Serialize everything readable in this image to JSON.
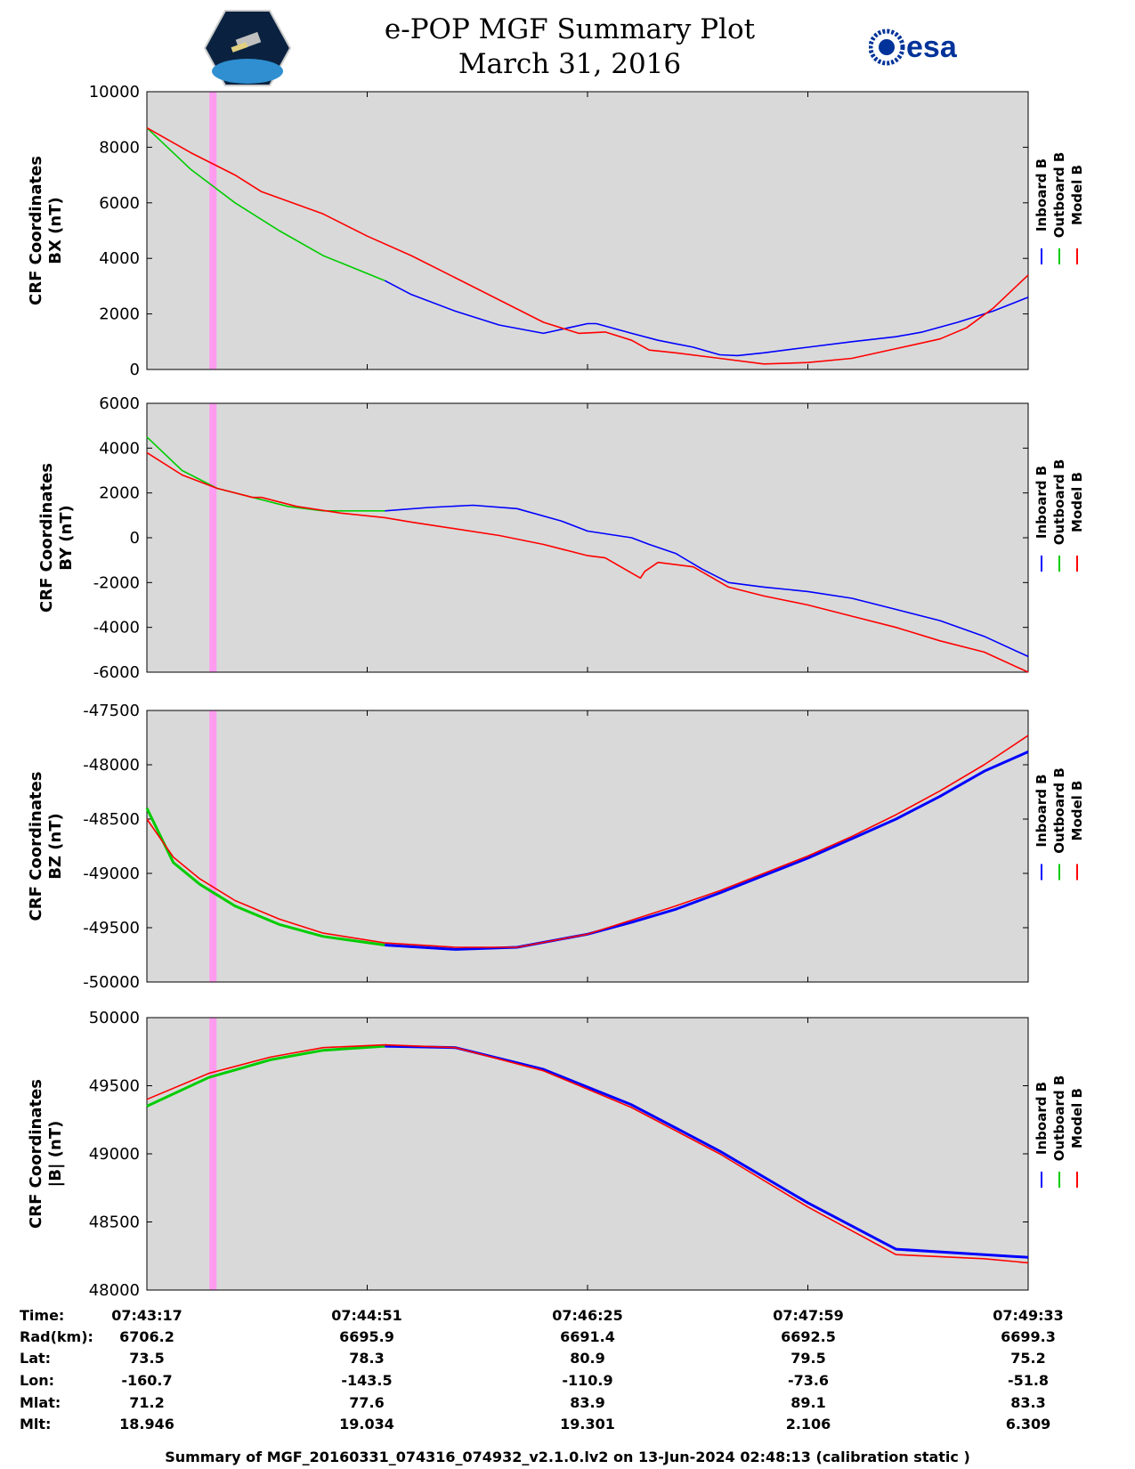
{
  "title": {
    "line1": "e-POP MGF Summary Plot",
    "line2": "March 31, 2016"
  },
  "logos": {
    "mission": "CASSIOPE mission patch",
    "agency": "esa"
  },
  "colors": {
    "background": "#d9d9d9",
    "inboard": "#0000ff",
    "outboard": "#00cc00",
    "model": "#ff0000",
    "marker": "#ff9cf0"
  },
  "legend": [
    "Inboard B",
    "Outboard B",
    "Model B"
  ],
  "x_ticks": [
    "07:43:17",
    "07:44:51",
    "07:46:25",
    "07:47:59",
    "07:49:33"
  ],
  "chart_data": [
    {
      "type": "line",
      "ylabel": [
        "CRF Coordinates",
        "BX (nT)"
      ],
      "ylim": [
        0,
        10000
      ],
      "yticks": [
        0,
        2000,
        4000,
        6000,
        8000,
        10000
      ],
      "x": [
        0,
        0.1,
        0.2,
        0.3,
        0.4,
        0.45,
        0.5,
        0.55,
        0.6,
        0.65,
        0.7,
        0.75,
        0.8,
        0.85,
        0.9,
        0.95,
        1.0
      ],
      "series": [
        {
          "name": "Inboard B",
          "color": "#0000ff",
          "x": [
            0.27,
            0.3,
            0.35,
            0.4,
            0.45,
            0.5,
            0.51,
            0.55,
            0.58,
            0.62,
            0.65,
            0.67,
            0.7,
            0.75,
            0.8,
            0.85,
            0.88,
            0.92,
            0.96,
            1.0
          ],
          "values": [
            3200,
            2700,
            2100,
            1600,
            1300,
            1650,
            1650,
            1300,
            1050,
            800,
            530,
            500,
            600,
            800,
            1000,
            1180,
            1350,
            1700,
            2100,
            2600
          ]
        },
        {
          "name": "Outboard B",
          "color": "#00cc00",
          "x": [
            0.0,
            0.05,
            0.1,
            0.15,
            0.2,
            0.27
          ],
          "values": [
            8700,
            7200,
            6000,
            5000,
            4100,
            3200
          ]
        },
        {
          "name": "Model B",
          "color": "#ff0000",
          "x": [
            0.0,
            0.05,
            0.1,
            0.13,
            0.2,
            0.25,
            0.3,
            0.35,
            0.4,
            0.45,
            0.49,
            0.52,
            0.55,
            0.57,
            0.6,
            0.65,
            0.7,
            0.75,
            0.8,
            0.85,
            0.9,
            0.93,
            0.96,
            1.0
          ],
          "values": [
            8700,
            7800,
            7000,
            6400,
            5600,
            4800,
            4100,
            3300,
            2500,
            1700,
            1300,
            1350,
            1050,
            700,
            600,
            400,
            200,
            250,
            400,
            750,
            1100,
            1500,
            2200,
            3400
          ]
        }
      ]
    },
    {
      "type": "line",
      "ylabel": [
        "CRF Coordinates",
        "BY (nT)"
      ],
      "ylim": [
        -6000,
        6000
      ],
      "yticks": [
        -6000,
        -4000,
        -2000,
        0,
        2000,
        4000,
        6000
      ],
      "series": [
        {
          "name": "Inboard B",
          "color": "#0000ff",
          "x": [
            0.27,
            0.32,
            0.37,
            0.42,
            0.47,
            0.5,
            0.55,
            0.57,
            0.6,
            0.63,
            0.66,
            0.7,
            0.75,
            0.8,
            0.85,
            0.9,
            0.95,
            1.0
          ],
          "values": [
            1200,
            1350,
            1450,
            1300,
            750,
            300,
            0,
            -300,
            -700,
            -1400,
            -2000,
            -2200,
            -2400,
            -2700,
            -3200,
            -3700,
            -4400,
            -5300
          ]
        },
        {
          "name": "Outboard B",
          "color": "#00cc00",
          "x": [
            0.0,
            0.04,
            0.08,
            0.12,
            0.16,
            0.2,
            0.27
          ],
          "values": [
            4500,
            3000,
            2200,
            1800,
            1400,
            1200,
            1200
          ]
        },
        {
          "name": "Model B",
          "color": "#ff0000",
          "x": [
            0.0,
            0.04,
            0.08,
            0.12,
            0.13,
            0.17,
            0.22,
            0.27,
            0.3,
            0.35,
            0.4,
            0.45,
            0.5,
            0.52,
            0.56,
            0.565,
            0.58,
            0.62,
            0.66,
            0.7,
            0.75,
            0.8,
            0.85,
            0.9,
            0.95,
            1.0
          ],
          "values": [
            3800,
            2800,
            2200,
            1800,
            1800,
            1400,
            1100,
            900,
            700,
            400,
            100,
            -300,
            -800,
            -900,
            -1800,
            -1500,
            -1100,
            -1300,
            -2200,
            -2600,
            -3000,
            -3500,
            -4000,
            -4600,
            -5100,
            -6000
          ]
        }
      ]
    },
    {
      "type": "line",
      "ylabel": [
        "CRF Coordinates",
        "BZ (nT)"
      ],
      "ylim": [
        -50000,
        -47500
      ],
      "yticks": [
        -50000,
        -49500,
        -49000,
        -48500,
        -48000,
        -47500
      ],
      "series": [
        {
          "name": "Inboard B",
          "color": "#0000ff",
          "x": [
            0.27,
            0.35,
            0.42,
            0.5,
            0.55,
            0.6,
            0.65,
            0.7,
            0.75,
            0.8,
            0.85,
            0.9,
            0.95,
            1.0
          ],
          "values": [
            -49660,
            -49700,
            -49680,
            -49560,
            -49450,
            -49330,
            -49180,
            -49020,
            -48860,
            -48680,
            -48500,
            -48290,
            -48060,
            -47880
          ]
        },
        {
          "name": "Outboard B",
          "color": "#00cc00",
          "x": [
            0.0,
            0.03,
            0.06,
            0.1,
            0.15,
            0.2,
            0.27
          ],
          "values": [
            -48400,
            -48900,
            -49100,
            -49300,
            -49470,
            -49580,
            -49660
          ]
        },
        {
          "name": "Model B",
          "color": "#ff0000",
          "x": [
            0.0,
            0.03,
            0.06,
            0.1,
            0.15,
            0.2,
            0.27,
            0.35,
            0.42,
            0.5,
            0.55,
            0.6,
            0.65,
            0.7,
            0.75,
            0.8,
            0.85,
            0.9,
            0.95,
            1.0
          ],
          "values": [
            -48500,
            -48850,
            -49050,
            -49250,
            -49420,
            -49550,
            -49640,
            -49680,
            -49680,
            -49560,
            -49430,
            -49300,
            -49160,
            -49000,
            -48840,
            -48660,
            -48460,
            -48240,
            -48000,
            -47730
          ]
        }
      ]
    },
    {
      "type": "line",
      "ylabel": [
        "CRF Coordinates",
        "|B| (nT)"
      ],
      "ylim": [
        48000,
        50000
      ],
      "yticks": [
        48000,
        48500,
        49000,
        49500,
        50000
      ],
      "series": [
        {
          "name": "Inboard B",
          "color": "#0000ff",
          "x": [
            0.27,
            0.35,
            0.45,
            0.55,
            0.65,
            0.75,
            0.85,
            0.95,
            1.0
          ],
          "values": [
            49790,
            49780,
            49620,
            49360,
            49020,
            48640,
            48300,
            48260,
            48240
          ]
        },
        {
          "name": "Outboard B",
          "color": "#00cc00",
          "x": [
            0.0,
            0.07,
            0.14,
            0.2,
            0.27
          ],
          "values": [
            49350,
            49560,
            49690,
            49760,
            49790
          ]
        },
        {
          "name": "Model B",
          "color": "#ff0000",
          "x": [
            0.0,
            0.07,
            0.14,
            0.2,
            0.27,
            0.35,
            0.45,
            0.55,
            0.65,
            0.75,
            0.85,
            0.95,
            1.0
          ],
          "values": [
            49400,
            49590,
            49710,
            49780,
            49800,
            49780,
            49610,
            49340,
            49000,
            48610,
            48260,
            48230,
            48200
          ]
        }
      ]
    }
  ],
  "info_table": {
    "labels": [
      "Time:",
      "Rad(km):",
      "Lat:",
      "Lon:",
      "Mlat:",
      "Mlt:"
    ],
    "columns": [
      [
        "07:43:17",
        "6706.2",
        "73.5",
        "-160.7",
        "71.2",
        "18.946"
      ],
      [
        "07:44:51",
        "6695.9",
        "78.3",
        "-143.5",
        "77.6",
        "19.034"
      ],
      [
        "07:46:25",
        "6691.4",
        "80.9",
        "-110.9",
        "83.9",
        "19.301"
      ],
      [
        "07:47:59",
        "6692.5",
        "79.5",
        "-73.6",
        "89.1",
        "2.106"
      ],
      [
        "07:49:33",
        "6699.3",
        "75.2",
        "-51.8",
        "83.3",
        "6.309"
      ]
    ]
  },
  "footer": "Summary of MGF_20160331_074316_074932_v2.1.0.lv2 on 13-Jun-2024 02:48:13 (calibration static )"
}
